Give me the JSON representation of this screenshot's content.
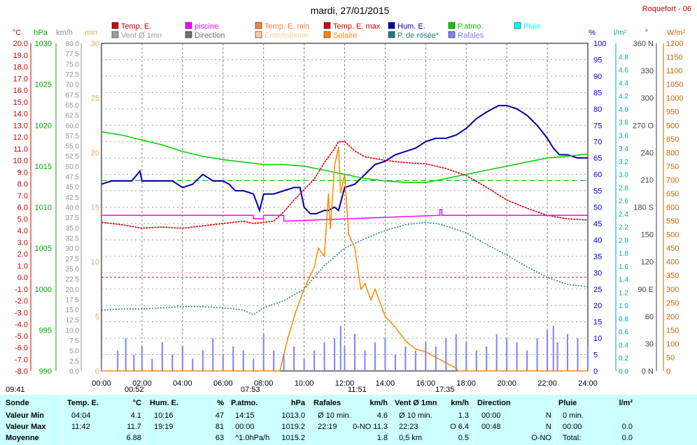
{
  "header": {
    "title": "mardi, 27/01/2015",
    "station": "Roquefort - 06"
  },
  "legend": [
    {
      "label": "Temp. E.",
      "color": "#d00000"
    },
    {
      "label": "piscine",
      "color": "#ff00ff"
    },
    {
      "label": "Temp. E. min",
      "color": "#ff8040"
    },
    {
      "label": "Temp. E. max",
      "color": "#d00000"
    },
    {
      "label": "Hum. E.",
      "color": "#0000aa"
    },
    {
      "label": "P.atmo.",
      "color": "#00cc00"
    },
    {
      "label": "Pluie",
      "color": "#00ffff"
    },
    {
      "label": "Vent Ø 1mn",
      "color": "#a0a0a0"
    },
    {
      "label": "Direction",
      "color": "#707070"
    },
    {
      "label": "Ensoleilleme",
      "color": "#ffcc99"
    },
    {
      "label": "Solaire",
      "color": "#ff8800"
    },
    {
      "label": "P. de rosée*",
      "color": "#208080"
    },
    {
      "label": "Rafales",
      "color": "#8080ff"
    }
  ],
  "colors": {
    "temp": "#cc0000",
    "pressure": "#00aa00",
    "wind": "#909090",
    "sun": "#e0b060",
    "hum": "#0000cc",
    "rain": "#00aaaa",
    "dir": "#404040",
    "solar": "#cc6600"
  },
  "chart_data": {
    "type": "line",
    "x_range": [
      "00:00",
      "24:00"
    ],
    "x_ticks": [
      "00:00",
      "02:00",
      "04:00",
      "06:00",
      "08:00",
      "10:00",
      "12:00",
      "14:00",
      "16:00",
      "18:00",
      "20:00",
      "22:00",
      "24:00"
    ],
    "axes": {
      "temp": {
        "unit": "°C",
        "range": [
          -8,
          20
        ],
        "ticks": [
          "20.0",
          "19.0",
          "18.0",
          "17.0",
          "16.0",
          "15.0",
          "14.0",
          "13.0",
          "12.0",
          "11.0",
          "10.0",
          "9.0",
          "8.0",
          "7.0",
          "6.0",
          "5.0",
          "4.0",
          "3.0",
          "2.0",
          "1.0",
          "0.0",
          "-1.0",
          "-2.0",
          "-3.0",
          "-4.0",
          "-5.0",
          "-6.0",
          "-7.0",
          "-8.0"
        ]
      },
      "pressure": {
        "unit": "hPa",
        "range": [
          990,
          1030
        ],
        "ticks": [
          "1030",
          "1025",
          "1020",
          "1015",
          "1010",
          "1005",
          "1000",
          "995",
          "990"
        ]
      },
      "wind": {
        "unit": "km/h",
        "range": [
          0,
          80
        ],
        "ticks": [
          "80.0",
          "77.5",
          "75.0",
          "72.5",
          "70.0",
          "67.5",
          "65.0",
          "62.5",
          "60.0",
          "57.5",
          "55.0",
          "52.5",
          "50.0",
          "47.5",
          "45.0",
          "42.5",
          "40.0",
          "37.5",
          "35.0",
          "32.5",
          "30.0",
          "27.5",
          "25.0",
          "22.5",
          "20.0",
          "17.5",
          "15.0",
          "12.5",
          "10.0",
          "7.5",
          "5.0",
          "2.5",
          "0.0"
        ]
      },
      "sun": {
        "unit": "min",
        "range": [
          0,
          30
        ],
        "ticks": [
          "30",
          "25",
          "20",
          "15",
          "10",
          "5",
          "0"
        ]
      },
      "hum": {
        "unit": "%",
        "range": [
          0,
          100
        ],
        "ticks": [
          "100",
          "95",
          "90",
          "85",
          "80",
          "75",
          "70",
          "65",
          "60",
          "55",
          "50",
          "45",
          "40",
          "35",
          "30",
          "25",
          "20",
          "15",
          "10",
          "5",
          "0"
        ]
      },
      "rain": {
        "unit": "l/m²",
        "range": [
          0,
          5
        ],
        "ticks": [
          "4.8",
          "4.6",
          "4.4",
          "4.2",
          "4.0",
          "3.8",
          "3.6",
          "3.4",
          "3.2",
          "3.0",
          "2.8",
          "2.6",
          "2.4",
          "2.2",
          "2.0",
          "1.8",
          "1.6",
          "1.4",
          "1.2",
          "1.0",
          "0.8",
          "0.6",
          "0.4",
          "0.2",
          "0.0"
        ]
      },
      "dir": {
        "unit": "°",
        "range": [
          0,
          360
        ],
        "ticks": [
          "360 N",
          "330",
          "300",
          "270 O",
          "240",
          "210",
          "180 S",
          "150",
          "120",
          "90 E",
          "60",
          "30",
          "0 N"
        ]
      },
      "solar": {
        "unit": "W/m²",
        "range": [
          0,
          1200
        ],
        "ticks": [
          "1200",
          "1150",
          "1100",
          "1050",
          "1000",
          "950",
          "900",
          "850",
          "800",
          "750",
          "700",
          "650",
          "600",
          "550",
          "500",
          "450",
          "400",
          "350",
          "300",
          "250",
          "200",
          "150",
          "100",
          "50",
          "0"
        ]
      }
    },
    "series": [
      {
        "name": "Hum. E.",
        "axis": "hum",
        "x": [
          0,
          0.5,
          1,
          1.5,
          1.9,
          2,
          2.5,
          3,
          3.5,
          4,
          4.5,
          5,
          5.5,
          6,
          6.3,
          6.6,
          7,
          7.5,
          7.8,
          8,
          8.5,
          9,
          9.5,
          9.8,
          10,
          10.3,
          10.6,
          11,
          11.2,
          11.5,
          11.7,
          12,
          12.5,
          13,
          13.5,
          14,
          14.5,
          15,
          15.5,
          16,
          16.5,
          17,
          17.5,
          18,
          18.5,
          19,
          19.3,
          19.6,
          20,
          20.5,
          21,
          21.5,
          22,
          22.3,
          22.6,
          23,
          23.5,
          24
        ],
        "y": [
          57,
          58,
          58,
          58,
          61,
          58,
          58,
          58,
          58,
          56,
          57,
          60,
          58,
          58,
          57,
          55,
          55,
          54,
          49,
          54,
          54,
          55,
          56,
          56,
          50,
          48,
          48,
          49,
          49,
          50,
          49,
          56,
          57,
          60,
          63,
          64,
          66,
          67,
          68,
          70,
          71,
          71,
          72,
          74,
          77,
          79,
          80,
          81,
          81,
          80,
          78,
          75,
          71,
          68,
          66,
          66,
          65,
          65
        ]
      },
      {
        "name": "P.atmo.",
        "axis": "pressure",
        "x": [
          0,
          1,
          2,
          3,
          4,
          5,
          6,
          7,
          8,
          9,
          10,
          11,
          12,
          13,
          14,
          15,
          16,
          17,
          18,
          19,
          20,
          21,
          22,
          23,
          24
        ],
        "y": [
          1019.2,
          1018.8,
          1018.2,
          1017.6,
          1016.8,
          1016.2,
          1015.8,
          1015.5,
          1015.2,
          1015.2,
          1015.0,
          1014.5,
          1014.0,
          1013.5,
          1013.2,
          1013.0,
          1013.0,
          1013.5,
          1014.0,
          1014.5,
          1015.0,
          1015.5,
          1016.0,
          1016.2,
          1016.5
        ]
      },
      {
        "name": "Temp. E.",
        "axis": "temp",
        "x": [
          0,
          1,
          2,
          3,
          4,
          5,
          6,
          7,
          7.5,
          8,
          8.5,
          9,
          9.5,
          10,
          10.5,
          11,
          11.5,
          11.7,
          12,
          12.5,
          13,
          14,
          15,
          16,
          17,
          18,
          19,
          20,
          21,
          22,
          23,
          24
        ],
        "y": [
          4.7,
          4.5,
          4.2,
          4.3,
          4.2,
          4.4,
          4.6,
          4.8,
          4.6,
          4.7,
          4.8,
          5.6,
          6.6,
          7.5,
          8.4,
          9.8,
          11.0,
          11.6,
          11.6,
          10.8,
          10.3,
          10.0,
          9.8,
          9.7,
          9.3,
          8.7,
          7.7,
          6.6,
          5.9,
          5.3,
          5.0,
          4.9
        ]
      },
      {
        "name": "piscine",
        "axis": "temp",
        "x": [
          0,
          7.5,
          7.5,
          8,
          8,
          9,
          9,
          16.7,
          16.7,
          16.8,
          16.8,
          24
        ],
        "y": [
          5.3,
          5.3,
          5.0,
          5.0,
          5.3,
          5.3,
          4.8,
          5.3,
          5.8,
          5.8,
          5.3,
          5.3
        ]
      },
      {
        "name": "P. de rosée*",
        "axis": "temp",
        "x": [
          0,
          1,
          2,
          3,
          4,
          5,
          6,
          7,
          7.5,
          8,
          9,
          10,
          11,
          12,
          13,
          14,
          15,
          16,
          16.5,
          17,
          18,
          19,
          20,
          21,
          22,
          23,
          24
        ],
        "y": [
          -2.8,
          -2.7,
          -2.7,
          -2.6,
          -2.5,
          -2.5,
          -2.6,
          -2.8,
          -3.2,
          -2.6,
          -2.0,
          -1.0,
          1.0,
          2.5,
          3.3,
          4.0,
          4.5,
          4.7,
          4.6,
          4.4,
          3.8,
          2.8,
          1.9,
          0.9,
          0.0,
          -0.6,
          -0.8
        ]
      },
      {
        "name": "Solaire",
        "axis": "solar",
        "x": [
          0,
          8.8,
          9.2,
          9.6,
          10,
          10.5,
          10.7,
          11,
          11.2,
          11.3,
          11.5,
          11.7,
          11.8,
          12,
          12.2,
          12.5,
          12.8,
          13,
          13.3,
          13.5,
          14,
          14.5,
          15,
          15.5,
          16,
          16.5,
          17,
          17.5,
          17.6,
          24
        ],
        "y": [
          0,
          0,
          120,
          220,
          300,
          380,
          450,
          420,
          650,
          520,
          750,
          820,
          650,
          720,
          500,
          450,
          300,
          320,
          260,
          300,
          200,
          160,
          110,
          80,
          70,
          50,
          30,
          10,
          0,
          0
        ]
      },
      {
        "name": "Rafales",
        "axis": "wind",
        "x": [
          0,
          0.8,
          1.2,
          1.6,
          2,
          2.5,
          3,
          3.5,
          4,
          4.5,
          5,
          5.5,
          6,
          6.5,
          7,
          7.5,
          8,
          8.5,
          9,
          9.5,
          10,
          10.5,
          11,
          11.5,
          11.8,
          12,
          12.5,
          13,
          13.5,
          14,
          14.5,
          15,
          15.5,
          16,
          16.5,
          17,
          17.5,
          18,
          18.5,
          19,
          19.5,
          20,
          20.5,
          21,
          21.5,
          22,
          22.3,
          22.5,
          23,
          23.5,
          24
        ],
        "y": [
          3,
          5,
          8,
          4,
          6,
          3,
          7,
          4,
          6,
          3,
          5,
          8,
          4,
          6,
          5,
          3,
          9,
          5,
          4,
          6,
          3,
          5,
          7,
          8,
          11,
          6,
          9,
          5,
          7,
          8,
          4,
          6,
          5,
          7,
          6,
          8,
          9,
          7,
          5,
          6,
          9,
          8,
          7,
          5,
          8,
          10,
          11,
          7,
          9,
          8,
          6
        ]
      }
    ]
  },
  "table": {
    "rows": [
      "Sonde",
      "Valeur Min",
      "Valeur Max",
      "Moyenne"
    ],
    "columns": [
      {
        "head": "Temp. E.",
        "unit": "°C",
        "min_t": "04:04",
        "min_v": "4.1",
        "max_t": "11:42",
        "max_v": "11.7",
        "avg_t": "",
        "avg_v": "6.88"
      },
      {
        "head": "Hum. E.",
        "unit": "%",
        "min_t": "10:16",
        "min_v": "47",
        "max_t": "19:19",
        "max_v": "81",
        "avg_t": "",
        "avg_v": "63"
      },
      {
        "head": "P.atmo.",
        "unit": "hPa",
        "min_t": "14:15",
        "min_v": "1013.0",
        "max_t": "00:00",
        "max_v": "1019.2",
        "avg_t": "^1.0hPa/h",
        "avg_v": "1015.2"
      },
      {
        "head": "Rafales",
        "unit": "km/h",
        "min_t": "Ø 10 min.",
        "min_v": "4.6",
        "max_t": "22:19",
        "max_v": "0-NO 11.3",
        "avg_t": "",
        "avg_v": "1.8"
      },
      {
        "head": "Vent Ø 1mn",
        "unit": "km/h",
        "min_t": "Ø 10 min.",
        "min_v": "1.3",
        "max_t": "22:23",
        "max_v": "O 6.4",
        "avg_t": "0,5 km",
        "avg_v": "0.5"
      },
      {
        "head": "Direction",
        "unit": "",
        "min_t": "00:00",
        "min_v": "N",
        "max_t": "00:48",
        "max_v": "N",
        "avg_t": "",
        "avg_v": "O-NO"
      },
      {
        "head": "Pluie",
        "unit": "l/m²",
        "min_t": "0 min.",
        "min_v": "",
        "max_t": "00:00",
        "max_v": "0.0",
        "avg_t": "Total:",
        "avg_v": "0.0"
      }
    ]
  },
  "sun_events": {
    "sunrise": "07:53",
    "sunset": "17:35",
    "noon": "11:51",
    "daylength": "09:41",
    "moon": "00:52"
  }
}
